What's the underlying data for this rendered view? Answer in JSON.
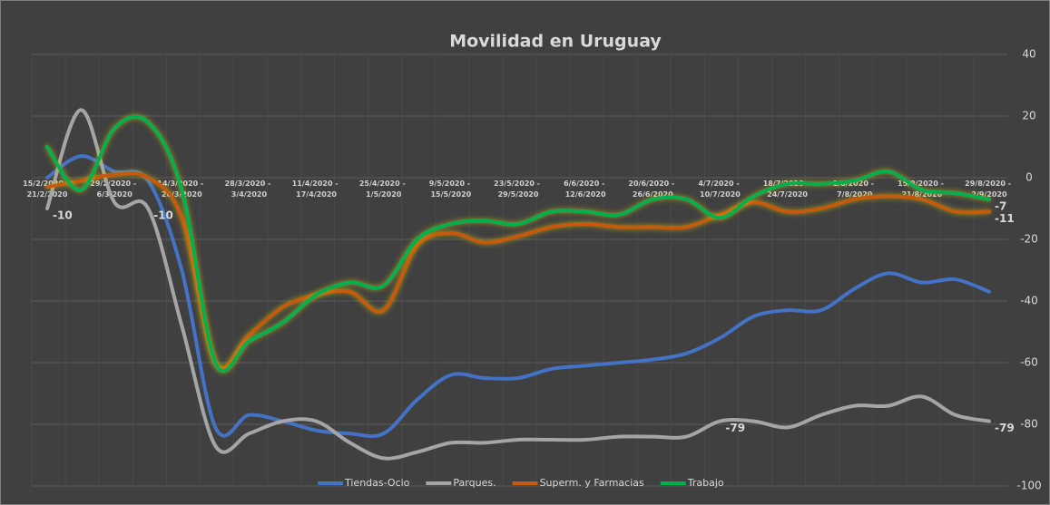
{
  "chart_data": {
    "type": "line",
    "title": "Movilidad en Uruguay",
    "categories": [
      "15/2/2020 - 21/2/2020",
      null,
      "29/2/2020 - 6/3/2020",
      null,
      "14/3/2020 - 20/3/2020",
      null,
      "28/3/2020 - 3/4/2020",
      null,
      "11/4/2020 - 17/4/2020",
      null,
      "25/4/2020 - 1/5/2020",
      null,
      "9/5/2020 - 15/5/2020",
      null,
      "23/5/2020 - 29/5/2020",
      null,
      "6/6/2020 - 12/6/2020",
      null,
      "20/6/2020 - 26/6/2020",
      null,
      "4/7/2020 - 10/7/2020",
      null,
      "18/7/2020 - 24/7/2020",
      null,
      "1/8/2020 - 7/8/2020",
      null,
      "15/8/2020 - 21/8/2020",
      null,
      "29/8/2020 - 2/9/2020"
    ],
    "series": [
      {
        "name": "Tiendas-Ocio",
        "color": "#4472c4",
        "values": [
          0,
          7,
          2,
          -1,
          -30,
          -81,
          -77,
          -79,
          -82,
          -83,
          -83,
          -72,
          -64,
          -65,
          -65,
          -62,
          -61,
          -60,
          -59,
          -57,
          -52,
          -45,
          -43,
          -43,
          -36,
          -31,
          -34,
          -33,
          -37
        ]
      },
      {
        "name": "Parques.",
        "color": "#a5a5a5",
        "values": [
          -10,
          22,
          -8,
          -10,
          -48,
          -87,
          -83,
          -79,
          -79,
          -86,
          -91,
          -89,
          -86,
          -86,
          -85,
          -85,
          -85,
          -84,
          -84,
          -84,
          -79,
          -79,
          -81,
          -77,
          -74,
          -74,
          -71,
          -77,
          -79
        ],
        "value_labels": [
          "-10",
          null,
          null,
          "-10",
          null,
          null,
          null,
          null,
          null,
          null,
          null,
          null,
          null,
          null,
          null,
          null,
          null,
          null,
          null,
          null,
          "-79",
          null,
          null,
          null,
          null,
          null,
          null,
          null,
          "-79"
        ]
      },
      {
        "name": "Superm. y Farmacias",
        "color": "#c55a11",
        "glow": true,
        "values": [
          -3,
          -1,
          1,
          0,
          -13,
          -60,
          -51,
          -42,
          -38,
          -37,
          -43,
          -22,
          -18,
          -21,
          -19,
          -16,
          -15,
          -16,
          -16,
          -16,
          -12,
          -8,
          -11,
          -10,
          -7,
          -6,
          -7,
          -11,
          -11
        ],
        "value_labels": [
          null,
          null,
          null,
          null,
          null,
          null,
          null,
          null,
          null,
          null,
          null,
          null,
          null,
          null,
          null,
          null,
          null,
          null,
          null,
          null,
          null,
          null,
          null,
          null,
          null,
          null,
          null,
          null,
          "-11"
        ]
      },
      {
        "name": "Trabajo",
        "color": "#00b050",
        "glow": true,
        "values": [
          10,
          -4,
          16,
          18,
          -4,
          -60,
          -53,
          -47,
          -38,
          -34,
          -35,
          -20,
          -15,
          -14,
          -15,
          -11,
          -11,
          -12,
          -7,
          -7,
          -13,
          -6,
          -2,
          -2,
          -1,
          2,
          -4,
          -5,
          -7
        ],
        "value_labels": [
          null,
          null,
          null,
          null,
          null,
          null,
          null,
          null,
          null,
          null,
          null,
          null,
          null,
          null,
          null,
          null,
          null,
          null,
          null,
          null,
          null,
          null,
          null,
          null,
          null,
          null,
          null,
          null,
          "-7"
        ]
      }
    ],
    "ylim": [
      -100,
      40
    ],
    "yticks": [
      -100,
      -80,
      -60,
      -40,
      -20,
      0,
      20,
      40
    ],
    "grid": true,
    "legend": "bottom"
  }
}
